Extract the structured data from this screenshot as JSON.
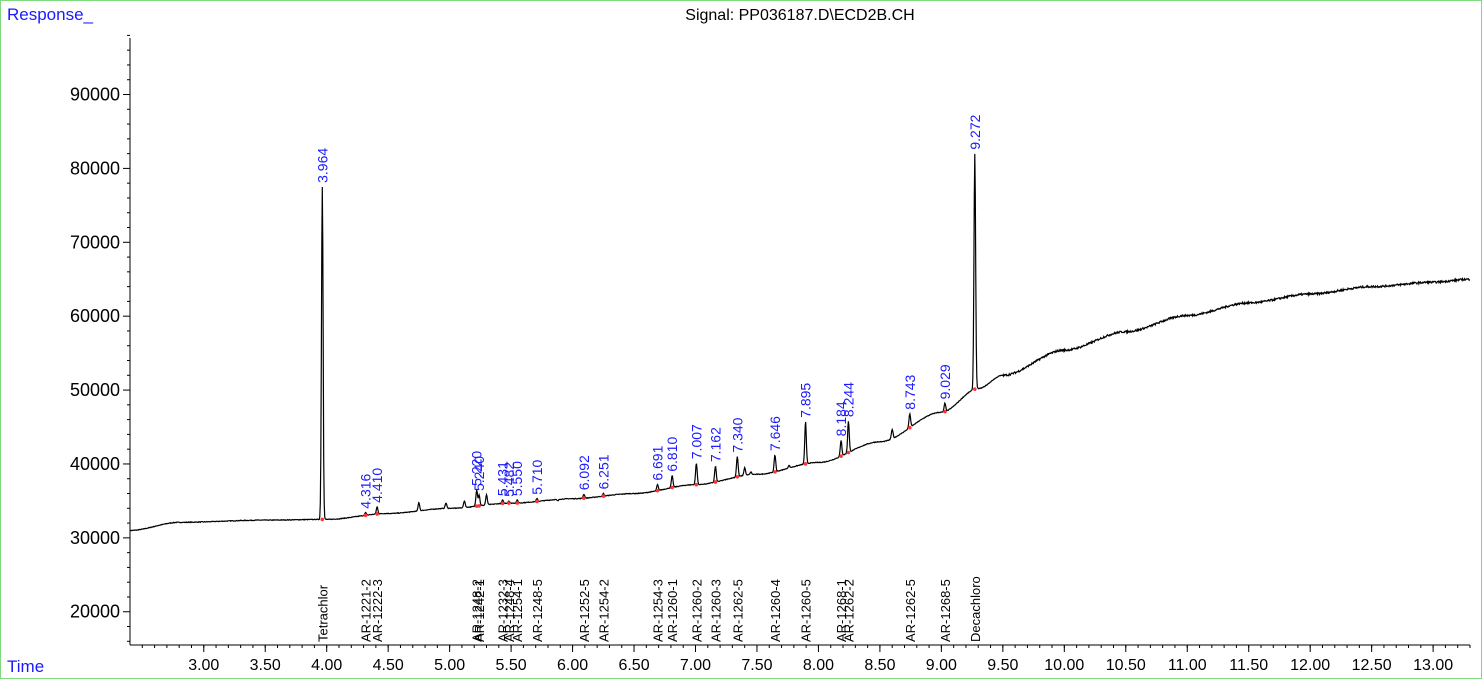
{
  "chart_data": {
    "type": "line",
    "title": "Signal: PP036187.D\\ECD2B.CH",
    "ylabel": "Response_",
    "xlabel": "Time",
    "xlim": [
      2.4,
      13.3
    ],
    "ylim": [
      15500,
      99000
    ],
    "y_ticks": [
      {
        "value": 20000,
        "label": "20000"
      },
      {
        "value": 30000,
        "label": "30000"
      },
      {
        "value": 40000,
        "label": "40000"
      },
      {
        "value": 50000,
        "label": "50000"
      },
      {
        "value": 60000,
        "label": "60000"
      },
      {
        "value": 70000,
        "label": "70000"
      },
      {
        "value": 80000,
        "label": "80000"
      },
      {
        "value": 90000,
        "label": "90000"
      }
    ],
    "x_ticks": [
      {
        "value": 3.0,
        "label": "3.00"
      },
      {
        "value": 3.5,
        "label": "3.50"
      },
      {
        "value": 4.0,
        "label": "4.00"
      },
      {
        "value": 4.5,
        "label": "4.50"
      },
      {
        "value": 5.0,
        "label": "5.00"
      },
      {
        "value": 5.5,
        "label": "5.50"
      },
      {
        "value": 6.0,
        "label": "6.00"
      },
      {
        "value": 6.5,
        "label": "6.50"
      },
      {
        "value": 7.0,
        "label": "7.00"
      },
      {
        "value": 7.5,
        "label": "7.50"
      },
      {
        "value": 8.0,
        "label": "8.00"
      },
      {
        "value": 8.5,
        "label": "8.50"
      },
      {
        "value": 9.0,
        "label": "9.00"
      },
      {
        "value": 9.5,
        "label": "9.50"
      },
      {
        "value": 10.0,
        "label": "10.00"
      },
      {
        "value": 10.5,
        "label": "10.50"
      },
      {
        "value": 11.0,
        "label": "11.00"
      },
      {
        "value": 11.5,
        "label": "11.50"
      },
      {
        "value": 12.0,
        "label": "12.00"
      },
      {
        "value": 12.5,
        "label": "12.50"
      },
      {
        "value": 13.0,
        "label": "13.00"
      }
    ],
    "baseline": [
      [
        2.4,
        31000
      ],
      [
        2.8,
        32100
      ],
      [
        3.5,
        32400
      ],
      [
        4.0,
        32500
      ],
      [
        4.5,
        33300
      ],
      [
        5.0,
        34000
      ],
      [
        5.5,
        34700
      ],
      [
        6.0,
        35300
      ],
      [
        6.5,
        36000
      ],
      [
        7.0,
        37200
      ],
      [
        7.5,
        38600
      ],
      [
        8.0,
        40200
      ],
      [
        8.5,
        43000
      ],
      [
        9.0,
        47000
      ],
      [
        9.3,
        50200
      ],
      [
        9.5,
        52000
      ],
      [
        10.0,
        55400
      ],
      [
        10.5,
        57900
      ],
      [
        11.0,
        60100
      ],
      [
        11.5,
        61800
      ],
      [
        12.0,
        63000
      ],
      [
        12.5,
        64000
      ],
      [
        13.0,
        64600
      ],
      [
        13.3,
        65000
      ]
    ],
    "peaks": [
      {
        "rt": 3.964,
        "label": "3.964",
        "height": 77500
      },
      {
        "rt": 4.316,
        "label": "4.316",
        "height": 33400
      },
      {
        "rt": 4.41,
        "label": "4.410",
        "height": 34200
      },
      {
        "rt": 5.22,
        "label": "5.220",
        "height": 36500
      },
      {
        "rt": 5.24,
        "label": "5.240",
        "height": 35800
      },
      {
        "rt": 5.431,
        "label": "5.431",
        "height": 35100
      },
      {
        "rt": 5.482,
        "label": "5.482",
        "height": 35000
      },
      {
        "rt": 5.55,
        "label": "5.550",
        "height": 35100
      },
      {
        "rt": 5.71,
        "label": "5.710",
        "height": 35300
      },
      {
        "rt": 6.092,
        "label": "6.092",
        "height": 35900
      },
      {
        "rt": 6.251,
        "label": "6.251",
        "height": 36000
      },
      {
        "rt": 6.691,
        "label": "6.691",
        "height": 37200
      },
      {
        "rt": 6.81,
        "label": "6.810",
        "height": 38400
      },
      {
        "rt": 7.007,
        "label": "7.007",
        "height": 40100
      },
      {
        "rt": 7.162,
        "label": "7.162",
        "height": 39700
      },
      {
        "rt": 7.34,
        "label": "7.340",
        "height": 41000
      },
      {
        "rt": 7.646,
        "label": "7.646",
        "height": 41200
      },
      {
        "rt": 7.895,
        "label": "7.895",
        "height": 45700
      },
      {
        "rt": 8.184,
        "label": "8.184",
        "height": 43200
      },
      {
        "rt": 8.244,
        "label": "8.244",
        "height": 45800
      },
      {
        "rt": 8.743,
        "label": "8.743",
        "height": 46800
      },
      {
        "rt": 9.029,
        "label": "9.029",
        "height": 48200
      },
      {
        "rt": 9.272,
        "label": "9.272",
        "height": 82000
      }
    ],
    "minor_peaks": [
      [
        4.75,
        34800
      ],
      [
        4.97,
        34700
      ],
      [
        5.12,
        35000
      ],
      [
        5.3,
        35800
      ],
      [
        5.88,
        35000
      ],
      [
        6.4,
        35900
      ],
      [
        7.4,
        39500
      ],
      [
        7.45,
        38900
      ],
      [
        7.76,
        39800
      ],
      [
        8.6,
        44700
      ]
    ],
    "compounds": [
      {
        "rt": 3.964,
        "name": "Tetrachlor"
      },
      {
        "rt": 4.316,
        "name": "AR-1221-2"
      },
      {
        "rt": 4.41,
        "name": "AR-1222-3"
      },
      {
        "rt": 5.22,
        "name": "AR-1248-2"
      },
      {
        "rt": 5.24,
        "name": "AR-1242-1"
      },
      {
        "rt": 5.431,
        "name": "AR-1232-3"
      },
      {
        "rt": 5.482,
        "name": "AR-1248-4"
      },
      {
        "rt": 5.55,
        "name": "AR-1254-1"
      },
      {
        "rt": 5.71,
        "name": "AR-1248-5"
      },
      {
        "rt": 6.092,
        "name": "AR-1252-5"
      },
      {
        "rt": 6.251,
        "name": "AR-1254-2"
      },
      {
        "rt": 6.691,
        "name": "AR-1254-3"
      },
      {
        "rt": 6.81,
        "name": "AR-1260-1"
      },
      {
        "rt": 7.007,
        "name": "AR-1260-2"
      },
      {
        "rt": 7.162,
        "name": "AR-1260-3"
      },
      {
        "rt": 7.34,
        "name": "AR-1262-5"
      },
      {
        "rt": 7.646,
        "name": "AR-1260-4"
      },
      {
        "rt": 7.895,
        "name": "AR-1260-5"
      },
      {
        "rt": 8.184,
        "name": "AR-1268-1"
      },
      {
        "rt": 8.244,
        "name": "AR-1262-2"
      },
      {
        "rt": 8.743,
        "name": "AR-1262-5"
      },
      {
        "rt": 9.029,
        "name": "AR-1268-5"
      },
      {
        "rt": 9.272,
        "name": "Decachloro"
      }
    ],
    "colors": {
      "trace": "#000000",
      "peak_label": "#1a1aff",
      "marker": "#ff3333"
    }
  }
}
